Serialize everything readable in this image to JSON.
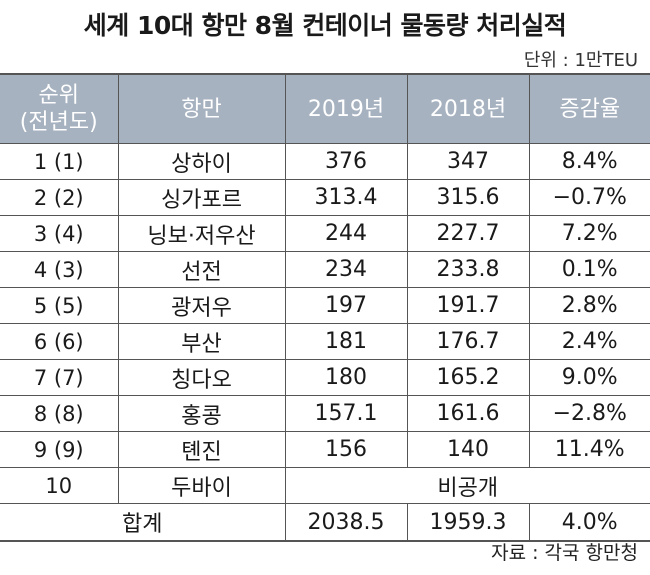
{
  "title": "세계 10대 항만 8월 컨테이너 물동량 처리실적",
  "unit": "단위 : 1만TEU",
  "headers": {
    "rank_line1": "순위",
    "rank_line2": "(전년도)",
    "port": "항만",
    "y2019": "2019년",
    "y2018": "2018년",
    "change": "증감율"
  },
  "rows": [
    {
      "rank": "1 (1)",
      "port": "상하이",
      "y2019": "376",
      "y2018": "347",
      "change": "8.4%"
    },
    {
      "rank": "2 (2)",
      "port": "싱가포르",
      "y2019": "313.4",
      "y2018": "315.6",
      "change": "−0.7%"
    },
    {
      "rank": "3 (4)",
      "port": "닝보·저우산",
      "y2019": "244",
      "y2018": "227.7",
      "change": "7.2%"
    },
    {
      "rank": "4 (3)",
      "port": "선전",
      "y2019": "234",
      "y2018": "233.8",
      "change": "0.1%"
    },
    {
      "rank": "5 (5)",
      "port": "광저우",
      "y2019": "197",
      "y2018": "191.7",
      "change": "2.8%"
    },
    {
      "rank": "6 (6)",
      "port": "부산",
      "y2019": "181",
      "y2018": "176.7",
      "change": "2.4%"
    },
    {
      "rank": "7 (7)",
      "port": "칭다오",
      "y2019": "180",
      "y2018": "165.2",
      "change": "9.0%"
    },
    {
      "rank": "8 (8)",
      "port": "홍콩",
      "y2019": "157.1",
      "y2018": "161.6",
      "change": "−2.8%"
    },
    {
      "rank": "9 (9)",
      "port": "톈진",
      "y2019": "156",
      "y2018": "140",
      "change": "11.4%"
    }
  ],
  "row10": {
    "rank": "10",
    "port": "두바이",
    "undisclosed": "비공개"
  },
  "total": {
    "label": "합계",
    "y2019": "2038.5",
    "y2018": "1959.3",
    "change": "4.0%"
  },
  "source": "자료 : 각국 항만청",
  "colors": {
    "header_bg": "#a7b2c0",
    "header_text": "#ffffff",
    "border": "#555555"
  }
}
